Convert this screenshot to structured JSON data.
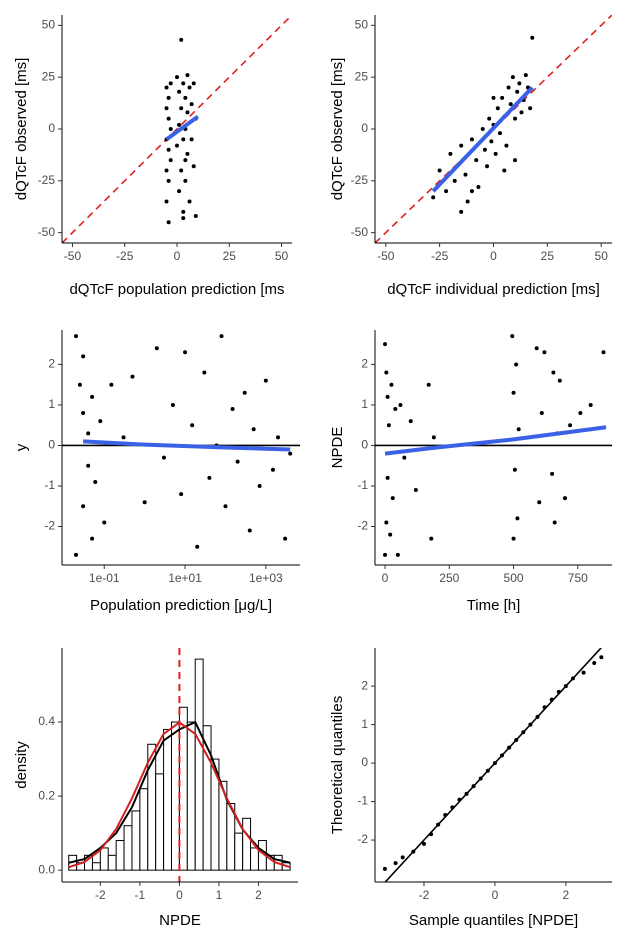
{
  "chart_data": [
    {
      "type": "scatter",
      "x_label": "dQTcF population prediction [ms",
      "y_label": "dQTcF observed  [ms]",
      "xlim": [
        -55,
        55
      ],
      "ylim": [
        -55,
        55
      ],
      "xticks": [
        -50,
        -25,
        0,
        25,
        50
      ],
      "yticks": [
        -50,
        -25,
        0,
        25,
        50
      ],
      "identity_line": true,
      "point_color": "#000000",
      "x": [
        -5,
        -5,
        -5,
        -5,
        -5,
        -4,
        -4,
        -4,
        -4,
        -4,
        -3,
        -3,
        -3,
        0,
        0,
        1,
        1,
        1,
        2,
        2,
        2,
        3,
        3,
        3,
        4,
        4,
        4,
        5,
        5,
        5,
        6,
        6,
        7,
        7,
        8,
        8,
        9,
        9,
        3,
        4
      ],
      "values": [
        20,
        10,
        -5,
        -20,
        -35,
        15,
        5,
        -10,
        -25,
        -45,
        22,
        0,
        -15,
        25,
        -8,
        18,
        2,
        -30,
        10,
        -20,
        43,
        22,
        -5,
        -40,
        15,
        0,
        -25,
        8,
        -12,
        26,
        20,
        -35,
        12,
        -5,
        22,
        -18,
        5,
        -42,
        -43,
        -15
      ],
      "trend": {
        "color": "#3b62e6",
        "x": [
          -5,
          10
        ],
        "values": [
          -5,
          6
        ]
      }
    },
    {
      "type": "scatter",
      "x_label": "dQTcF individual prediction [ms]",
      "y_label": "dQTcF observed  [ms]",
      "xlim": [
        -55,
        55
      ],
      "ylim": [
        -55,
        55
      ],
      "xticks": [
        -50,
        -25,
        0,
        25,
        50
      ],
      "yticks": [
        -50,
        -25,
        0,
        25,
        50
      ],
      "identity_line": true,
      "point_color": "#000000",
      "x": [
        -28,
        -25,
        -22,
        -20,
        -18,
        -15,
        -13,
        -12,
        -10,
        -8,
        -7,
        -5,
        -4,
        -3,
        -2,
        -1,
        0,
        1,
        2,
        3,
        4,
        5,
        6,
        7,
        8,
        9,
        10,
        11,
        12,
        13,
        14,
        15,
        16,
        17,
        18,
        -15,
        -10,
        5,
        0,
        10
      ],
      "values": [
        -33,
        -20,
        -30,
        -12,
        -25,
        -8,
        -22,
        -35,
        -5,
        -15,
        -28,
        0,
        -10,
        -18,
        5,
        -6,
        2,
        -12,
        10,
        -2,
        15,
        6,
        -8,
        20,
        12,
        25,
        5,
        18,
        22,
        8,
        14,
        26,
        20,
        10,
        44,
        -40,
        -30,
        -20,
        15,
        -15
      ],
      "trend": {
        "color": "#3b62e6",
        "x": [
          -28,
          18
        ],
        "values": [
          -30,
          20
        ]
      }
    },
    {
      "type": "scatter",
      "x_label": "Population prediction [μg/L]",
      "y_label": "y",
      "xscale": "log",
      "xlim": [
        0.009,
        7000
      ],
      "ylim": [
        -2.95,
        2.85
      ],
      "xticks": [
        {
          "value": 0.1,
          "label": "1e-01"
        },
        {
          "value": 10,
          "label": "1e+01"
        },
        {
          "value": 1000,
          "label": "1e+03"
        }
      ],
      "yticks": [
        -2,
        -1,
        0,
        1,
        2
      ],
      "hline": 0,
      "point_color": "#000000",
      "x": [
        0.02,
        0.02,
        0.025,
        0.03,
        0.03,
        0.03,
        0.04,
        0.04,
        0.05,
        0.05,
        0.06,
        0.08,
        0.1,
        0.15,
        0.3,
        2,
        3,
        5,
        8,
        10,
        15,
        20,
        30,
        40,
        60,
        80,
        100,
        150,
        200,
        300,
        400,
        500,
        700,
        1000,
        1500,
        2000,
        3000,
        4000,
        0.5,
        1
      ],
      "values": [
        2.7,
        -2.7,
        1.5,
        0.8,
        -1.5,
        2.2,
        -0.5,
        0.3,
        -2.3,
        1.2,
        -0.9,
        0.6,
        -1.9,
        1.5,
        0.2,
        2.4,
        -0.3,
        1.0,
        -1.2,
        2.3,
        0.5,
        -2.5,
        1.8,
        -0.8,
        0.0,
        2.7,
        -1.5,
        0.9,
        -0.4,
        1.3,
        -2.1,
        0.4,
        -1.0,
        1.6,
        -0.6,
        0.2,
        -2.3,
        -0.2,
        1.7,
        -1.4
      ],
      "trend": {
        "color": "#3b62e6",
        "x": [
          0.03,
          1,
          100,
          4000
        ],
        "values": [
          0.1,
          0.02,
          -0.05,
          -0.1
        ]
      }
    },
    {
      "type": "scatter",
      "x_label": "Time [h]",
      "y_label": "NPDE",
      "xlim": [
        -39,
        883
      ],
      "ylim": [
        -2.95,
        2.85
      ],
      "xticks": [
        0,
        250,
        500,
        750
      ],
      "yticks": [
        -2,
        -1,
        0,
        1,
        2
      ],
      "hline": 0,
      "point_color": "#000000",
      "x": [
        0,
        0,
        5,
        5,
        10,
        10,
        15,
        20,
        25,
        30,
        40,
        50,
        60,
        75,
        100,
        120,
        170,
        180,
        190,
        495,
        500,
        500,
        505,
        510,
        515,
        520,
        590,
        600,
        610,
        620,
        650,
        655,
        660,
        670,
        680,
        700,
        720,
        760,
        800,
        850
      ],
      "values": [
        2.5,
        -2.7,
        1.8,
        -1.9,
        1.2,
        -0.8,
        0.5,
        -2.2,
        1.5,
        -1.3,
        0.9,
        -2.7,
        1.0,
        -0.3,
        0.6,
        -1.1,
        1.5,
        -2.3,
        0.2,
        2.7,
        -2.3,
        1.3,
        -0.6,
        2.0,
        -1.8,
        0.4,
        2.4,
        -1.4,
        0.8,
        2.3,
        -0.7,
        1.8,
        -1.9,
        0.3,
        1.6,
        -1.3,
        0.5,
        0.8,
        1.0,
        2.3
      ],
      "trend": {
        "color": "#3b62e6",
        "x": [
          0,
          200,
          500,
          860
        ],
        "values": [
          -0.2,
          -0.05,
          0.15,
          0.45
        ]
      }
    },
    {
      "type": "histogram",
      "x_label": "NPDE",
      "y_label": "density",
      "xlim": [
        -2.97,
        3.0
      ],
      "ylim": [
        -0.032,
        0.6
      ],
      "xticks": [
        -2,
        -1,
        0,
        1,
        2
      ],
      "yticks": [
        {
          "value": 0,
          "label": "0.0"
        },
        {
          "value": 0.2,
          "label": "0.2"
        },
        {
          "value": 0.4,
          "label": "0.4"
        }
      ],
      "vline": 0,
      "vline_color": "#e02020",
      "bins": [
        -2.8,
        -2.6,
        -2.4,
        -2.2,
        -2.0,
        -1.8,
        -1.6,
        -1.4,
        -1.2,
        -1.0,
        -0.8,
        -0.6,
        -0.4,
        -0.2,
        0.0,
        0.2,
        0.4,
        0.6,
        0.8,
        1.0,
        1.2,
        1.4,
        1.6,
        1.8,
        2.0,
        2.2,
        2.4,
        2.6,
        2.8
      ],
      "values": [
        0.04,
        0.02,
        0.04,
        0.02,
        0.06,
        0.04,
        0.08,
        0.12,
        0.16,
        0.22,
        0.34,
        0.26,
        0.38,
        0.4,
        0.44,
        0.4,
        0.57,
        0.39,
        0.3,
        0.24,
        0.18,
        0.1,
        0.14,
        0.06,
        0.08,
        0.04,
        0.04,
        0.02
      ],
      "curves": [
        {
          "color": "#000000",
          "x": [
            -2.8,
            -2.4,
            -2.0,
            -1.6,
            -1.2,
            -0.8,
            -0.4,
            0,
            0.4,
            0.8,
            1.2,
            1.6,
            2.0,
            2.4,
            2.8
          ],
          "values": [
            0.02,
            0.03,
            0.06,
            0.1,
            0.17,
            0.27,
            0.35,
            0.38,
            0.4,
            0.31,
            0.19,
            0.11,
            0.06,
            0.03,
            0.02
          ]
        },
        {
          "color": "#d42020",
          "x": [
            -2.8,
            -2.4,
            -2.0,
            -1.6,
            -1.2,
            -0.8,
            -0.4,
            0,
            0.4,
            0.8,
            1.2,
            1.6,
            2.0,
            2.4,
            2.8
          ],
          "values": [
            0.008,
            0.022,
            0.054,
            0.111,
            0.194,
            0.29,
            0.368,
            0.399,
            0.368,
            0.29,
            0.194,
            0.111,
            0.054,
            0.022,
            0.008
          ]
        }
      ]
    },
    {
      "type": "scatter",
      "x_label": "Sample quantiles [NPDE]",
      "y_label": "Theoretical quantiles",
      "xlim": [
        -3.38,
        3.3
      ],
      "ylim": [
        -3.09,
        2.99
      ],
      "xticks": [
        -2,
        0,
        2
      ],
      "yticks": [
        -2,
        -1,
        0,
        1,
        2
      ],
      "identity_line": true,
      "point_color": "#000000",
      "x": [
        -3.1,
        -2.8,
        -2.6,
        -2.3,
        -2.0,
        -1.8,
        -1.6,
        -1.4,
        -1.2,
        -1.0,
        -0.8,
        -0.6,
        -0.4,
        -0.2,
        0,
        0.2,
        0.4,
        0.6,
        0.8,
        1.0,
        1.2,
        1.4,
        1.6,
        1.8,
        2.0,
        2.2,
        2.5,
        2.8,
        3.0
      ],
      "values": [
        -2.75,
        -2.6,
        -2.45,
        -2.3,
        -2.1,
        -1.85,
        -1.6,
        -1.35,
        -1.15,
        -0.95,
        -0.8,
        -0.6,
        -0.4,
        -0.2,
        0,
        0.2,
        0.4,
        0.6,
        0.8,
        1.0,
        1.2,
        1.45,
        1.65,
        1.85,
        2.0,
        2.2,
        2.35,
        2.6,
        2.75
      ]
    }
  ]
}
